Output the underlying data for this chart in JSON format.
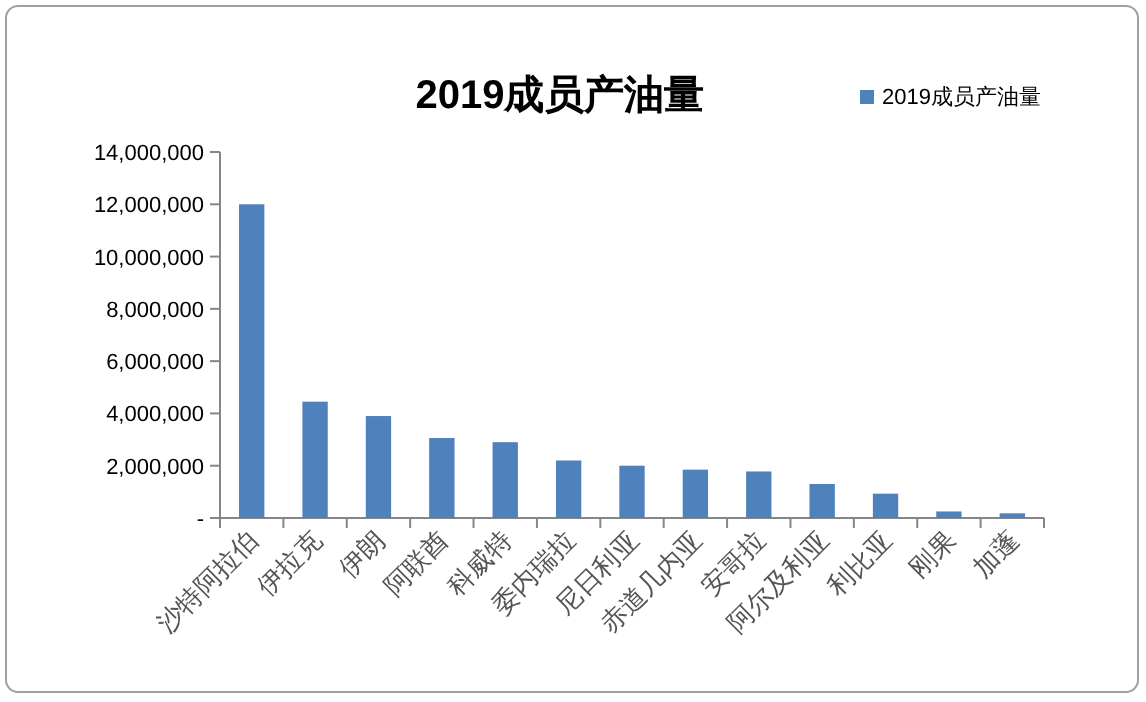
{
  "chart_data": {
    "type": "bar",
    "title": "2019成员产油量",
    "categories": [
      "沙特阿拉伯",
      "伊拉克",
      "伊朗",
      "阿联酋",
      "科威特",
      "委内瑞拉",
      "尼日利亚",
      "赤道几内亚",
      "安哥拉",
      "阿尔及利亚",
      "利比亚",
      "刚果",
      "加蓬"
    ],
    "series": [
      {
        "name": "2019成员产油量",
        "color": "#4f81bd",
        "values": [
          12000000,
          4450000,
          3900000,
          3060000,
          2900000,
          2200000,
          2000000,
          1850000,
          1780000,
          1300000,
          930000,
          250000,
          180000
        ]
      }
    ],
    "ylim": [
      0,
      14000000
    ],
    "yticks": [
      {
        "value": 0,
        "label": "-"
      },
      {
        "value": 2000000,
        "label": "2,000,000"
      },
      {
        "value": 4000000,
        "label": "4,000,000"
      },
      {
        "value": 6000000,
        "label": "6,000,000"
      },
      {
        "value": 8000000,
        "label": "8,000,000"
      },
      {
        "value": 10000000,
        "label": "10,000,000"
      },
      {
        "value": 12000000,
        "label": "12,000,000"
      },
      {
        "value": 14000000,
        "label": "14,000,000"
      }
    ],
    "grid": false,
    "legend": "top right"
  }
}
